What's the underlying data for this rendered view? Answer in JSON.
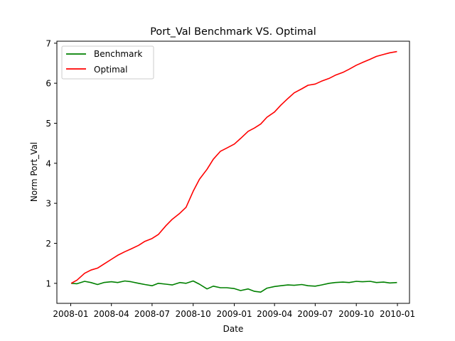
{
  "chart_data": {
    "type": "line",
    "title": "Port_Val Benchmark VS. Optimal",
    "xlabel": "Date",
    "ylabel": "Norm Port_Val",
    "xlim": [
      "2007-12-01",
      "2010-01-28"
    ],
    "ylim": [
      0.5,
      7.05
    ],
    "x_ticks": [
      "2008-01-01",
      "2008-04-01",
      "2008-07-01",
      "2008-10-01",
      "2009-01-01",
      "2009-04-01",
      "2009-07-01",
      "2009-10-01",
      "2010-01-01"
    ],
    "x_tick_labels": [
      "2008-01",
      "2008-04",
      "2008-07",
      "2008-10",
      "2009-01",
      "2009-04",
      "2009-07",
      "2009-10",
      "2010-01"
    ],
    "y_ticks": [
      1,
      2,
      3,
      4,
      5,
      6,
      7
    ],
    "y_tick_labels": [
      "1",
      "2",
      "3",
      "4",
      "5",
      "6",
      "7"
    ],
    "grid": false,
    "legend": "top-left",
    "series": [
      {
        "name": "Benchmark",
        "color": "#008000",
        "x": [
          "2008-01-02",
          "2008-01-15",
          "2008-02-01",
          "2008-02-15",
          "2008-03-01",
          "2008-03-15",
          "2008-04-01",
          "2008-04-15",
          "2008-05-01",
          "2008-05-15",
          "2008-06-01",
          "2008-06-15",
          "2008-07-01",
          "2008-07-15",
          "2008-08-01",
          "2008-08-15",
          "2008-09-01",
          "2008-09-15",
          "2008-10-01",
          "2008-10-15",
          "2008-11-01",
          "2008-11-15",
          "2008-12-01",
          "2008-12-15",
          "2009-01-01",
          "2009-01-15",
          "2009-02-01",
          "2009-02-15",
          "2009-03-01",
          "2009-03-15",
          "2009-04-01",
          "2009-04-15",
          "2009-05-01",
          "2009-05-15",
          "2009-06-01",
          "2009-06-15",
          "2009-07-01",
          "2009-07-15",
          "2009-08-01",
          "2009-08-15",
          "2009-09-01",
          "2009-09-15",
          "2009-10-01",
          "2009-10-15",
          "2009-11-01",
          "2009-11-15",
          "2009-12-01",
          "2009-12-15",
          "2009-12-31"
        ],
        "y": [
          1.0,
          0.99,
          1.05,
          1.02,
          0.97,
          1.02,
          1.04,
          1.02,
          1.06,
          1.04,
          1.0,
          0.97,
          0.94,
          1.0,
          0.98,
          0.96,
          1.02,
          1.0,
          1.06,
          0.98,
          0.86,
          0.93,
          0.89,
          0.89,
          0.87,
          0.82,
          0.86,
          0.8,
          0.78,
          0.88,
          0.92,
          0.94,
          0.96,
          0.95,
          0.97,
          0.94,
          0.93,
          0.96,
          1.0,
          1.02,
          1.03,
          1.02,
          1.05,
          1.04,
          1.05,
          1.02,
          1.03,
          1.01,
          1.02
        ]
      },
      {
        "name": "Optimal",
        "color": "#ff0000",
        "x": [
          "2008-01-02",
          "2008-01-15",
          "2008-02-01",
          "2008-02-15",
          "2008-03-01",
          "2008-03-15",
          "2008-04-01",
          "2008-04-15",
          "2008-05-01",
          "2008-05-15",
          "2008-06-01",
          "2008-06-15",
          "2008-07-01",
          "2008-07-15",
          "2008-08-01",
          "2008-08-15",
          "2008-09-01",
          "2008-09-15",
          "2008-10-01",
          "2008-10-15",
          "2008-11-01",
          "2008-11-15",
          "2008-12-01",
          "2008-12-15",
          "2009-01-01",
          "2009-01-15",
          "2009-02-01",
          "2009-02-15",
          "2009-03-01",
          "2009-03-15",
          "2009-04-01",
          "2009-04-15",
          "2009-05-01",
          "2009-05-15",
          "2009-06-01",
          "2009-06-15",
          "2009-07-01",
          "2009-07-15",
          "2009-08-01",
          "2009-08-15",
          "2009-09-01",
          "2009-09-15",
          "2009-10-01",
          "2009-10-15",
          "2009-11-01",
          "2009-11-15",
          "2009-12-01",
          "2009-12-15",
          "2009-12-31"
        ],
        "y": [
          1.0,
          1.08,
          1.25,
          1.33,
          1.38,
          1.48,
          1.6,
          1.7,
          1.79,
          1.86,
          1.95,
          2.05,
          2.12,
          2.22,
          2.44,
          2.6,
          2.75,
          2.9,
          3.3,
          3.6,
          3.85,
          4.1,
          4.3,
          4.38,
          4.48,
          4.62,
          4.8,
          4.88,
          4.98,
          5.15,
          5.28,
          5.45,
          5.62,
          5.76,
          5.86,
          5.95,
          5.98,
          6.05,
          6.12,
          6.2,
          6.27,
          6.35,
          6.45,
          6.52,
          6.6,
          6.67,
          6.72,
          6.76,
          6.79
        ]
      }
    ]
  }
}
